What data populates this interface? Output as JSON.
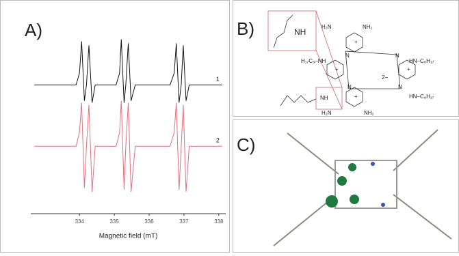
{
  "panel_a": {
    "label": "A)"
  },
  "chart_data": {
    "type": "line",
    "xlabel": "Magnetic field (mT)",
    "x": [
      332.7,
      333.9,
      334.0,
      334.06,
      334.14,
      334.2,
      334.27,
      334.36,
      334.45,
      335.05,
      335.15,
      335.2,
      335.28,
      335.33,
      335.4,
      335.48,
      335.6,
      336.6,
      336.72,
      336.78,
      336.86,
      336.92,
      336.98,
      337.06,
      337.15,
      338.1
    ],
    "series": [
      {
        "name": "1",
        "color": "#111111",
        "values": [
          64,
          64,
          70,
          86,
          56,
          64,
          84,
          55,
          64,
          64,
          70,
          87,
          55,
          64,
          85,
          56,
          64,
          64,
          70,
          85,
          55,
          64,
          84,
          56,
          64,
          64
        ]
      },
      {
        "name": "2",
        "color": "#e0707e",
        "values": [
          33,
          33,
          40,
          55,
          12,
          33,
          54,
          10,
          33,
          33,
          40,
          56,
          11,
          33,
          55,
          10,
          33,
          33,
          40,
          55,
          11,
          33,
          54,
          10,
          33,
          33
        ]
      }
    ],
    "xlim": [
      332.6,
      338.2
    ],
    "ylim": [
      0,
      100
    ],
    "xticks": [
      334,
      335,
      336,
      337,
      338
    ]
  },
  "panel_b": {
    "label": "B)",
    "zoom_label": "NH",
    "labels": [
      "H₂N",
      "NH₂",
      "H₁₇C₈–NH",
      "HN–C₈H₁₇",
      "2−",
      "HN–C₈H₁₇",
      "NH",
      "H₂N",
      "NH₂",
      "+",
      "+",
      "+",
      "+",
      "N",
      "N",
      "N",
      "N"
    ]
  },
  "panel_c": {
    "label": "C)"
  }
}
